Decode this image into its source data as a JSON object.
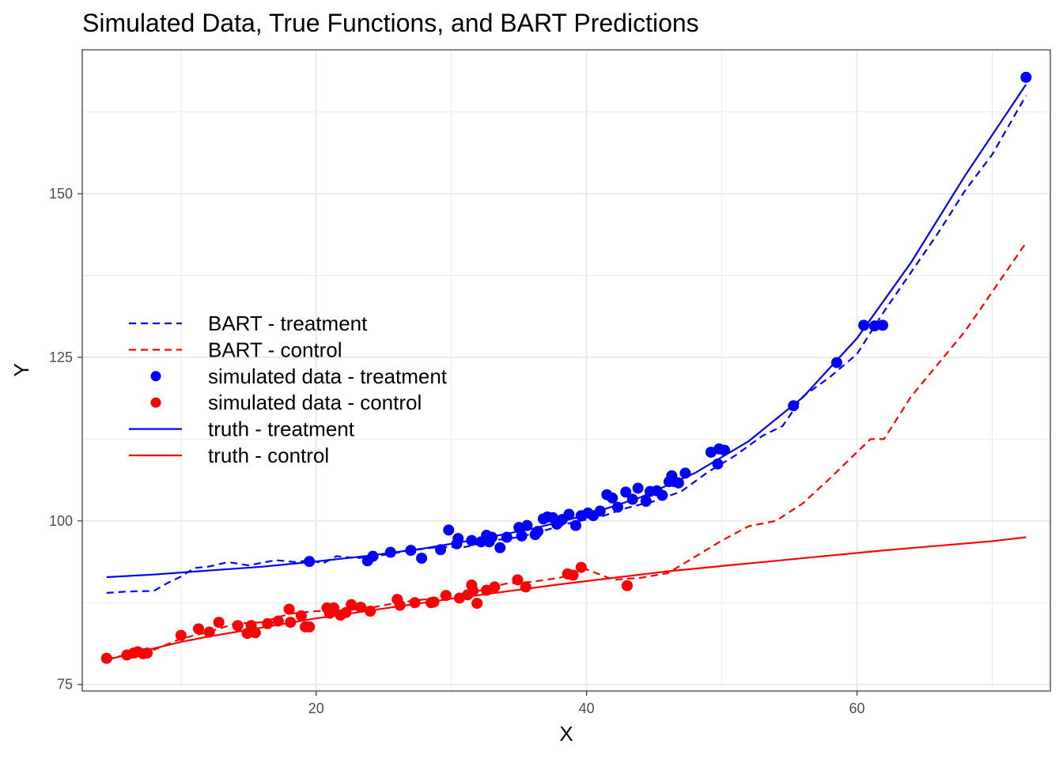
{
  "chart_data": {
    "type": "scatter",
    "title": "Simulated Data, True Functions, and BART Predictions",
    "xlabel": "X",
    "ylabel": "Y",
    "xlim": [
      2.7,
      74.3
    ],
    "ylim": [
      74,
      172
    ],
    "x_ticks": [
      20,
      40,
      60
    ],
    "y_ticks": [
      75,
      100,
      125,
      150
    ],
    "x_minor": [
      10,
      30,
      50,
      70
    ],
    "y_minor": [
      87.5,
      112.5,
      137.5,
      162.5
    ],
    "grid": true,
    "legend_position": "inside-left",
    "colors": {
      "treatment": "#0000ff",
      "control": "#ff0000"
    },
    "series": [
      {
        "name": "BART - treatment",
        "kind": "line",
        "dash": "dashed",
        "color": "#0000ff",
        "x": [
          4.5,
          6,
          8,
          9,
          10,
          11,
          12,
          13.5,
          15,
          17,
          18.5,
          19.5,
          20.5,
          21.5,
          23,
          25,
          27,
          29,
          31,
          33,
          35,
          37,
          39,
          41,
          43,
          45,
          47,
          49,
          51,
          53,
          54.5,
          56,
          58,
          60,
          62,
          64,
          66,
          68,
          70,
          72.5
        ],
        "y": [
          89,
          89.2,
          89.3,
          90.5,
          91.5,
          92.8,
          93,
          93.7,
          93.2,
          94,
          93.7,
          94,
          93.5,
          94.6,
          94.3,
          94.8,
          95.5,
          96,
          96,
          97,
          97.5,
          98.6,
          99.8,
          100.6,
          102,
          103,
          104.5,
          107.5,
          110,
          113,
          114.5,
          119,
          122,
          125.5,
          132,
          138,
          144,
          150.5,
          156,
          165
        ]
      },
      {
        "name": "BART - control",
        "kind": "line",
        "dash": "dashed",
        "color": "#ff0000",
        "x": [
          4.5,
          6,
          8,
          10,
          12,
          14,
          16,
          18,
          20,
          22,
          24,
          26,
          28,
          30,
          32,
          34,
          36,
          38,
          40,
          42,
          44,
          46,
          48,
          50,
          52,
          54,
          56,
          58,
          60,
          61,
          62,
          64,
          66,
          68,
          70,
          72.5
        ],
        "y": [
          78.8,
          79.6,
          80.3,
          82,
          83,
          84.3,
          84.5,
          85.8,
          86.2,
          86.3,
          86.7,
          87.5,
          88,
          88.2,
          89.3,
          90.4,
          90.7,
          91.3,
          92.6,
          91,
          91.3,
          92,
          94.5,
          97,
          99.2,
          100,
          102.7,
          106.5,
          110.5,
          112.5,
          112.5,
          119,
          124,
          129,
          135,
          142.5
        ]
      },
      {
        "name": "simulated data - treatment",
        "kind": "points",
        "color": "#0000ff",
        "x": [
          19.5,
          23.8,
          24.2,
          25.5,
          27,
          27.8,
          29.2,
          29.8,
          30.4,
          30.5,
          31.5,
          32.2,
          32.6,
          32.8,
          33,
          33.6,
          34.1,
          35.0,
          35.2,
          35.6,
          36.2,
          36.4,
          36.8,
          37.1,
          37.5,
          37.8,
          38.2,
          38.7,
          39.2,
          39.6,
          40.1,
          40.5,
          41.0,
          41.5,
          41.9,
          42.3,
          42.9,
          43.4,
          43.8,
          44.4,
          44.7,
          45.2,
          45.6,
          46.1,
          46.3,
          46.5,
          46.8,
          47.3,
          49.2,
          49.7,
          49.8,
          50.2,
          55.3,
          58.5,
          60.5,
          61.3,
          61.9,
          72.5
        ],
        "y": [
          93.8,
          93.9,
          94.6,
          95.2,
          95.5,
          94.3,
          95.6,
          98.6,
          96.5,
          97.3,
          97,
          96.8,
          97.8,
          96.8,
          97.5,
          95.9,
          97.5,
          99.0,
          97.7,
          99.3,
          97.9,
          98.4,
          100.3,
          100.6,
          100.5,
          99.5,
          100.2,
          101,
          99.3,
          100.8,
          101.2,
          100.8,
          101.5,
          104.0,
          103.5,
          102.1,
          104.4,
          103.3,
          105,
          103,
          104.5,
          104.6,
          103.9,
          106,
          106.9,
          106,
          105.8,
          107.3,
          110.5,
          108.7,
          111.0,
          110.8,
          117.6,
          124.2,
          129.9,
          129.8,
          129.9,
          167.8
        ]
      },
      {
        "name": "simulated data - control",
        "kind": "points",
        "color": "#ff0000",
        "x": [
          4.5,
          6.0,
          6.5,
          6.8,
          7.2,
          7.5,
          10.0,
          11.3,
          12.1,
          12.8,
          14.2,
          14.9,
          15.2,
          15.5,
          16.4,
          17.2,
          18.0,
          18.1,
          18.9,
          19.2,
          19.5,
          20.8,
          21.0,
          21.3,
          21.8,
          22.2,
          22.6,
          23.3,
          24.0,
          26.0,
          26.2,
          27.3,
          28.5,
          28.7,
          29.6,
          30.6,
          31.2,
          31.5,
          31.6,
          31.9,
          32.6,
          33.2,
          34.9,
          35.5,
          38.6,
          39.0,
          39.6,
          43.0
        ],
        "y": [
          79.0,
          79.5,
          79.8,
          80.0,
          79.7,
          79.8,
          82.5,
          83.5,
          83.0,
          84.5,
          84.0,
          82.8,
          84.0,
          82.9,
          84.3,
          84.7,
          86.5,
          84.5,
          85.5,
          83.8,
          83.8,
          86.7,
          85.9,
          86.7,
          85.6,
          86.0,
          87.2,
          86.8,
          86.2,
          88.0,
          87.1,
          87.5,
          87.5,
          87.6,
          88.6,
          88.2,
          88.7,
          90.2,
          89.3,
          87.4,
          89.4,
          89.9,
          91.0,
          89.9,
          91.9,
          91.7,
          92.9,
          90.1
        ]
      },
      {
        "name": "truth - treatment",
        "kind": "line",
        "dash": "solid",
        "color": "#0000ff",
        "x": [
          4.5,
          8,
          12,
          16,
          20,
          24,
          28,
          32,
          36,
          40,
          44,
          48,
          52,
          56,
          60,
          64,
          68,
          72.5
        ],
        "y": [
          91.4,
          91.8,
          92.4,
          93,
          93.8,
          94.7,
          95.8,
          97.2,
          98.8,
          100.9,
          103.6,
          107.3,
          112.2,
          118.9,
          127.9,
          139.5,
          152.8,
          166.7
        ]
      },
      {
        "name": "truth - control",
        "kind": "line",
        "dash": "solid",
        "color": "#ff0000",
        "x": [
          4.5,
          6,
          8,
          10,
          12,
          14,
          16,
          18,
          20,
          22,
          24,
          26,
          28,
          30,
          34,
          38,
          42,
          46,
          50,
          54,
          58,
          62,
          66,
          70,
          72.5
        ],
        "y": [
          78.8,
          79.5,
          80.5,
          81.5,
          82.3,
          83.0,
          83.7,
          84.4,
          85.1,
          85.7,
          86.3,
          86.9,
          87.5,
          88.1,
          89.2,
          90.3,
          91.3,
          92.3,
          93.1,
          93.9,
          94.7,
          95.5,
          96.2,
          96.9,
          97.5
        ]
      }
    ]
  }
}
